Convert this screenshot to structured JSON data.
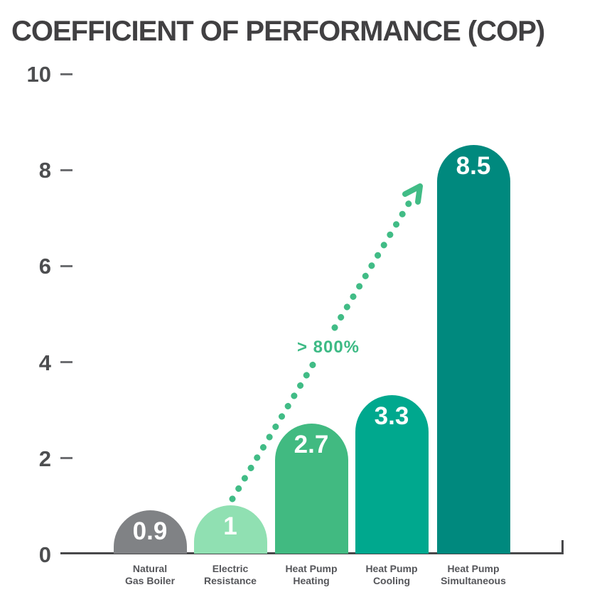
{
  "title": "COEFFICIENT OF PERFORMANCE (COP)",
  "annotation": {
    "label": "> 800%"
  },
  "colors": {
    "title": "#414042",
    "axis": "#48484a",
    "tick": "#6d6e71",
    "tick_label": "#4d4e50",
    "category_label": "#55565a",
    "value_label": "#ffffff",
    "accent_green": "#41bc86",
    "background": "#ffffff"
  },
  "chart_data": {
    "type": "bar",
    "title": "COEFFICIENT OF PERFORMANCE (COP)",
    "categories": [
      "Natural Gas Boiler",
      "Electric Resistance",
      "Heat Pump Heating",
      "Heat Pump Cooling",
      "Heat Pump Simultaneous"
    ],
    "category_label_lines": [
      [
        "Natural",
        "Gas Boiler"
      ],
      [
        "Electric",
        "Resistance"
      ],
      [
        "Heat Pump",
        "Heating"
      ],
      [
        "Heat Pump",
        "Cooling"
      ],
      [
        "Heat Pump",
        "Simultaneous"
      ]
    ],
    "values": [
      0.9,
      1,
      2.7,
      3.3,
      8.5
    ],
    "value_labels": [
      "0.9",
      "1",
      "2.7",
      "3.3",
      "8.5"
    ],
    "bar_colors": [
      "#808285",
      "#90e0b2",
      "#41ba81",
      "#00a88e",
      "#00897e"
    ],
    "xlabel": "",
    "ylabel": "",
    "ylim": [
      0,
      10
    ],
    "yticks": [
      0,
      2,
      4,
      6,
      8,
      10
    ],
    "grid": false,
    "legend": false,
    "annotation": {
      "text": "> 800%",
      "style": "dotted arrow from top of Electric Resistance bar to top of Heat Pump Simultaneous bar",
      "color": "#41bc86"
    }
  }
}
